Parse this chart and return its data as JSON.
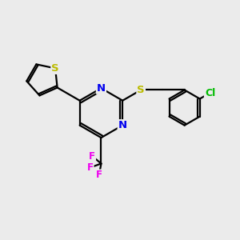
{
  "background_color": "#ebebeb",
  "bond_color": "#000000",
  "bond_width": 1.6,
  "atom_colors": {
    "N": "#0000ee",
    "S": "#bbbb00",
    "F": "#ee00ee",
    "Cl": "#00bb00"
  },
  "font_size": 9.5
}
